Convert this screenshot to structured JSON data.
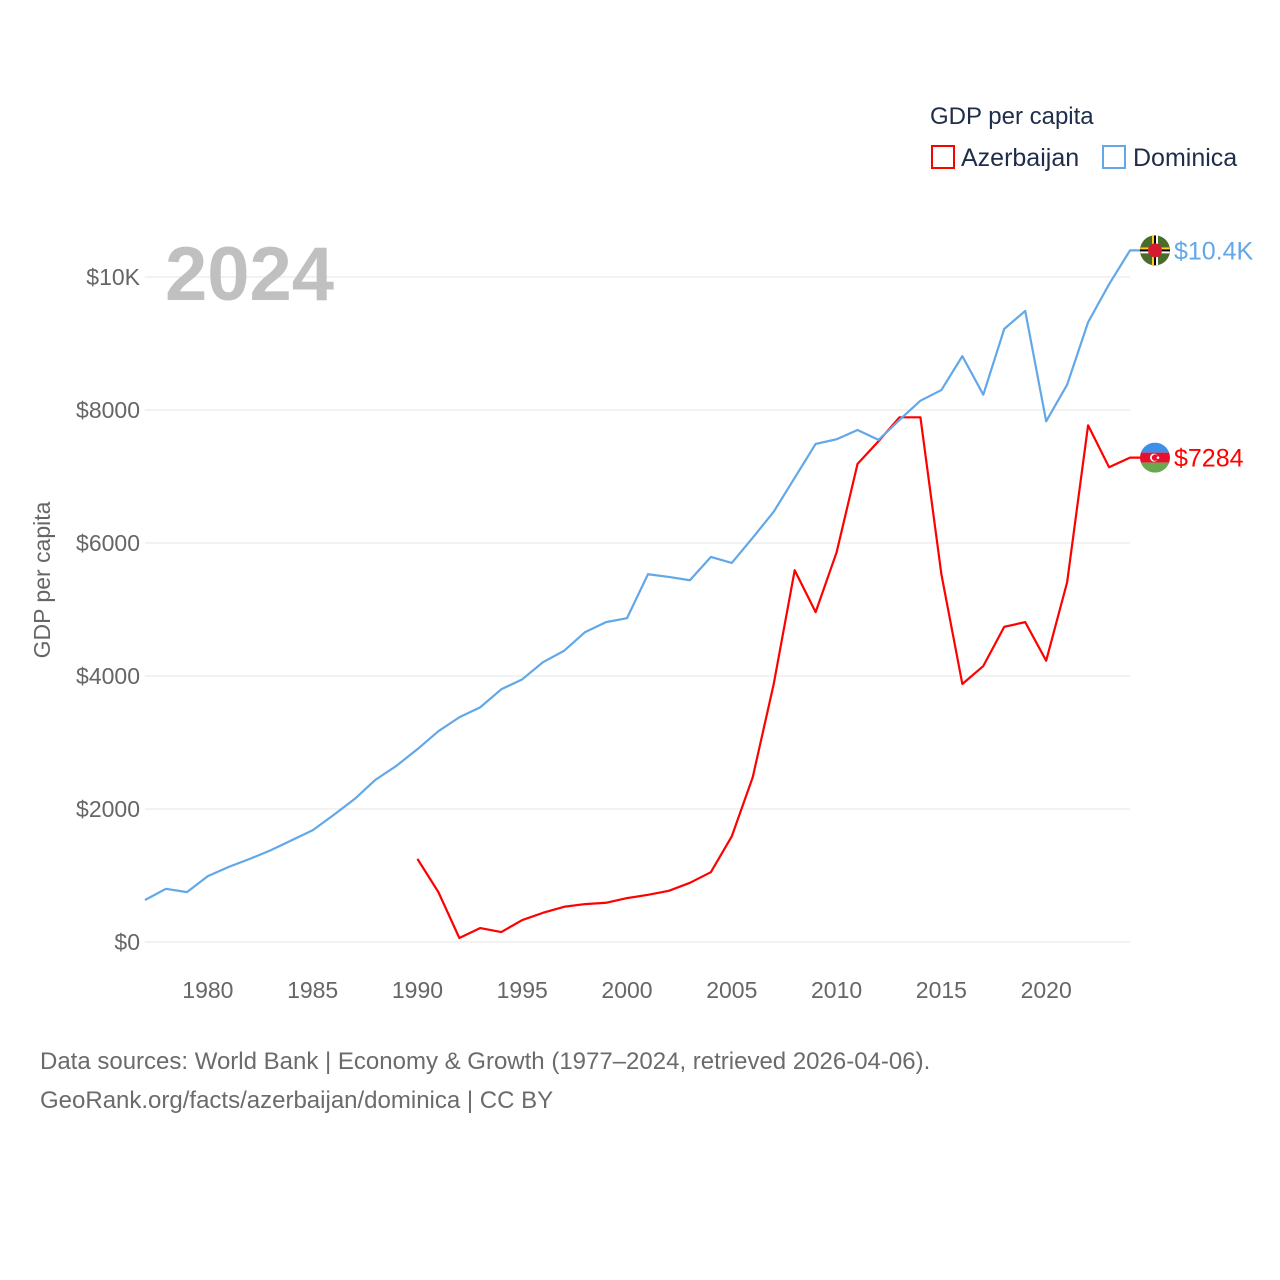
{
  "chart_data": {
    "type": "line",
    "title": "",
    "year_label": "2024",
    "xlabel": "",
    "ylabel": "GDP per capita",
    "xlim": [
      1977,
      2024
    ],
    "ylim": [
      0,
      10000
    ],
    "x_ticks": [
      1980,
      1985,
      1990,
      1995,
      2000,
      2005,
      2010,
      2015,
      2020
    ],
    "x_tick_labels": [
      "1980",
      "1985",
      "1990",
      "1995",
      "2000",
      "2005",
      "2010",
      "2015",
      "2020"
    ],
    "y_ticks": [
      0,
      2000,
      4000,
      6000,
      8000,
      10000
    ],
    "y_tick_labels": [
      "$0",
      "$2000",
      "$4000",
      "$6000",
      "$8000",
      "$10K"
    ],
    "grid": true,
    "legend": {
      "title": "GDP per capita",
      "placement": "top-right"
    },
    "series": [
      {
        "name": "Azerbaijan",
        "color": "#ff0000",
        "end_label": "$7284",
        "flag": "azerbaijan-flag",
        "x": [
          1990,
          1991,
          1992,
          1993,
          1994,
          1995,
          1996,
          1997,
          1998,
          1999,
          2000,
          2001,
          2002,
          2003,
          2004,
          2005,
          2006,
          2007,
          2008,
          2009,
          2010,
          2011,
          2012,
          2013,
          2014,
          2015,
          2016,
          2017,
          2018,
          2019,
          2020,
          2021,
          2022,
          2023,
          2024
        ],
        "values": [
          1250,
          750,
          60,
          210,
          150,
          330,
          440,
          530,
          570,
          590,
          660,
          710,
          770,
          890,
          1050,
          1590,
          2480,
          3880,
          5590,
          4960,
          5860,
          7190,
          7530,
          7890,
          7890,
          5530,
          3880,
          4150,
          4740,
          4810,
          4230,
          5410,
          7770,
          7140,
          7284
        ]
      },
      {
        "name": "Dominica",
        "color": "#62a8e8",
        "end_label": "$10.4K",
        "flag": "dominica-flag",
        "x": [
          1977,
          1978,
          1979,
          1980,
          1981,
          1982,
          1983,
          1984,
          1985,
          1986,
          1987,
          1988,
          1989,
          1990,
          1991,
          1992,
          1993,
          1994,
          1995,
          1996,
          1997,
          1998,
          1999,
          2000,
          2001,
          2002,
          2003,
          2004,
          2005,
          2006,
          2007,
          2008,
          2009,
          2010,
          2011,
          2012,
          2013,
          2014,
          2015,
          2016,
          2017,
          2018,
          2019,
          2020,
          2021,
          2022,
          2023,
          2024
        ],
        "values": [
          632,
          800,
          750,
          990,
          1130,
          1250,
          1380,
          1530,
          1680,
          1910,
          2150,
          2440,
          2650,
          2900,
          3170,
          3380,
          3530,
          3800,
          3950,
          4210,
          4380,
          4660,
          4810,
          4870,
          5530,
          5490,
          5440,
          5790,
          5700,
          6080,
          6470,
          6980,
          7490,
          7560,
          7700,
          7550,
          7850,
          8140,
          8300,
          8810,
          8230,
          9220,
          9490,
          7830,
          8380,
          9320,
          9890,
          10400
        ]
      }
    ]
  },
  "footer": {
    "line1": "Data sources: World Bank | Economy & Growth (1977–2024, retrieved 2026-04-06).",
    "line2": "GeoRank.org/facts/azerbaijan/dominica | CC BY"
  }
}
